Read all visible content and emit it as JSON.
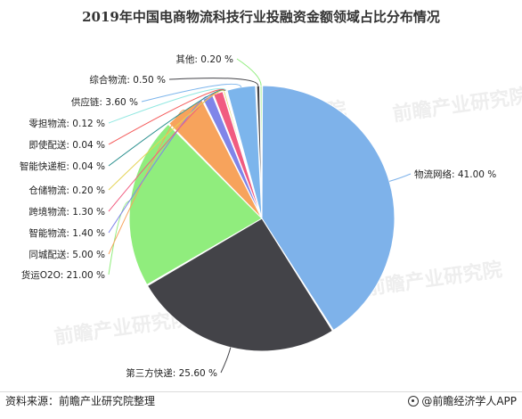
{
  "title": "2019年中国电商物流科技行业投融资金额领域占比分布情况",
  "chart_data": {
    "type": "pie",
    "title": "2019年中国电商物流科技行业投融资金额领域占比分布情况",
    "slices": [
      {
        "label": "物流网络",
        "value": 41.0,
        "display": "物流网络: 41.00 %",
        "color": "#7eb2ea"
      },
      {
        "label": "第三方快递",
        "value": 25.6,
        "display": "第三方快递: 25.60 %",
        "color": "#434348"
      },
      {
        "label": "货运O2O",
        "value": 21.0,
        "display": "货运O2O: 21.00 %",
        "color": "#90ed7d"
      },
      {
        "label": "同城配送",
        "value": 5.0,
        "display": "同城配送: 5.00 %",
        "color": "#f7a35c"
      },
      {
        "label": "智能物流",
        "value": 1.4,
        "display": "智能物流: 1.40 %",
        "color": "#8085e9"
      },
      {
        "label": "跨境物流",
        "value": 1.3,
        "display": "跨境物流: 1.30 %",
        "color": "#f15c80"
      },
      {
        "label": "仓储物流",
        "value": 0.2,
        "display": "仓储物流: 0.20 %",
        "color": "#e4d354"
      },
      {
        "label": "智能快递柜",
        "value": 0.04,
        "display": "智能快递柜: 0.04 %",
        "color": "#2b908f"
      },
      {
        "label": "即使配送",
        "value": 0.04,
        "display": "即使配送: 0.04 %",
        "color": "#f45b5b"
      },
      {
        "label": "零担物流",
        "value": 0.12,
        "display": "零担物流: 0.12 %",
        "color": "#91e8e1"
      },
      {
        "label": "供应链",
        "value": 3.6,
        "display": "供应链: 3.60 %",
        "color": "#7cb5ec"
      },
      {
        "label": "综合物流",
        "value": 0.5,
        "display": "综合物流: 0.50 %",
        "color": "#434348"
      },
      {
        "label": "其他",
        "value": 0.2,
        "display": "其他: 0.20 %",
        "color": "#90ed7d"
      }
    ]
  },
  "footer": {
    "source": "资料来源：前瞻产业研究院整理",
    "brand": "@前瞻经济学人APP"
  },
  "watermark": "前瞻产业研究院"
}
